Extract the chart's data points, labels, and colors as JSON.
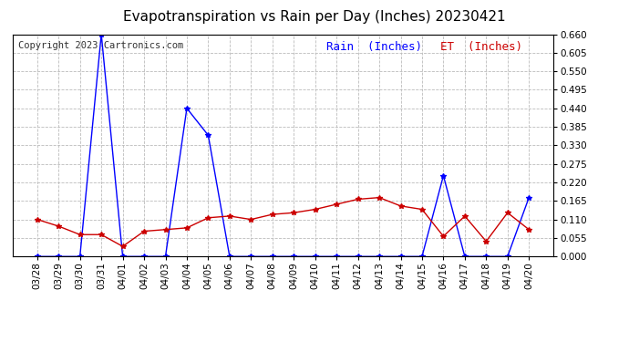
{
  "title": "Evapotranspiration vs Rain per Day (Inches) 20230421",
  "copyright": "Copyright 2023 Cartronics.com",
  "legend_rain": "Rain  (Inches)",
  "legend_et": "ET  (Inches)",
  "dates": [
    "03/28",
    "03/29",
    "03/30",
    "03/31",
    "04/01",
    "04/02",
    "04/03",
    "04/04",
    "04/05",
    "04/06",
    "04/07",
    "04/08",
    "04/09",
    "04/10",
    "04/11",
    "04/12",
    "04/13",
    "04/14",
    "04/15",
    "04/16",
    "04/17",
    "04/18",
    "04/19",
    "04/20"
  ],
  "rain": [
    0.0,
    0.0,
    0.0,
    0.66,
    0.0,
    0.0,
    0.0,
    0.44,
    0.36,
    0.0,
    0.0,
    0.0,
    0.0,
    0.0,
    0.0,
    0.0,
    0.0,
    0.0,
    0.0,
    0.24,
    0.0,
    0.0,
    0.0,
    0.175
  ],
  "et": [
    0.11,
    0.09,
    0.065,
    0.065,
    0.03,
    0.075,
    0.08,
    0.085,
    0.115,
    0.12,
    0.11,
    0.125,
    0.13,
    0.14,
    0.155,
    0.17,
    0.175,
    0.15,
    0.14,
    0.06,
    0.12,
    0.045,
    0.13,
    0.08
  ],
  "ylim": [
    0.0,
    0.66
  ],
  "yticks": [
    0.0,
    0.055,
    0.11,
    0.165,
    0.22,
    0.275,
    0.33,
    0.385,
    0.44,
    0.495,
    0.55,
    0.605,
    0.66
  ],
  "rain_color": "#0000ff",
  "et_color": "#cc0000",
  "grid_color": "#bbbbbb",
  "bg_color": "#ffffff",
  "title_fontsize": 11,
  "copyright_fontsize": 7.5,
  "legend_fontsize": 9,
  "tick_fontsize": 7.5
}
